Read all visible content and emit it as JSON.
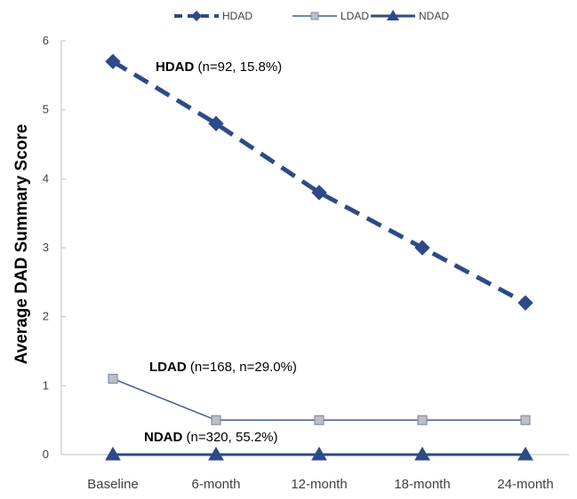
{
  "chart_data": {
    "type": "line",
    "title": "",
    "xlabel": "",
    "ylabel": "Average DAD Summary Score",
    "categories": [
      "Baseline",
      "6-month",
      "12-month",
      "18-month",
      "24-month"
    ],
    "ylim": [
      0,
      6
    ],
    "yticks": [
      0,
      1,
      2,
      3,
      4,
      5,
      6
    ],
    "grid": false,
    "legend_position": "top",
    "series": [
      {
        "name": "HDAD",
        "values": [
          5.7,
          4.8,
          3.8,
          3.0,
          2.2
        ],
        "color": "#2E4A87",
        "line_style": "dashed",
        "marker": "diamond",
        "annotation_bold": "HDAD",
        "annotation_rest": " (n=92, 15.8%)"
      },
      {
        "name": "LDAD",
        "values": [
          1.1,
          0.5,
          0.5,
          0.5,
          0.5
        ],
        "color": "#3B5B9A",
        "marker_fill": "#BFBFBF",
        "line_style": "solid",
        "marker": "square",
        "annotation_bold": "LDAD",
        "annotation_rest": " (n=168, n=29.0%)"
      },
      {
        "name": "NDAD",
        "values": [
          0,
          0,
          0,
          0,
          0
        ],
        "color": "#2E4A87",
        "line_style": "solid",
        "marker": "triangle",
        "annotation_bold": "NDAD",
        "annotation_rest": " (n=320, 55.2%)"
      }
    ]
  }
}
